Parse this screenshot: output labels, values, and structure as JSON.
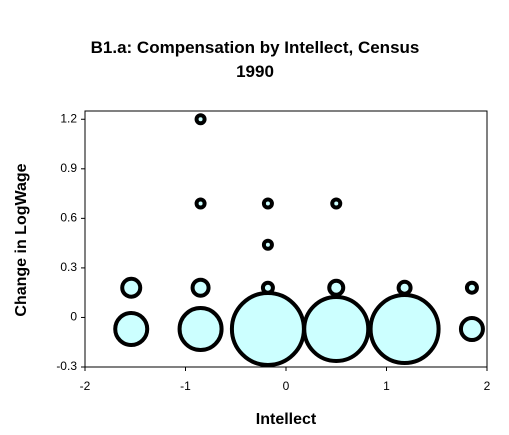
{
  "chart_data": {
    "type": "bubble",
    "title": "B1.a: Compensation by Intellect, Census 1990",
    "xlabel": "Intellect",
    "ylabel": "Change in LogWage",
    "series": [
      {
        "color": "#ccffff",
        "x": [
          -1.54,
          -0.85,
          -0.18,
          0.5,
          1.18,
          1.85,
          -1.54,
          -0.85,
          -0.18,
          0.5,
          1.18,
          1.85,
          -0.85,
          -0.85,
          -0.18,
          0.5,
          -0.18
        ],
        "values": [
          -0.07,
          -0.07,
          -0.07,
          -0.07,
          -0.07,
          -0.07,
          0.18,
          0.18,
          0.18,
          0.18,
          0.18,
          0.18,
          1.2,
          0.69,
          0.69,
          0.69,
          0.44
        ],
        "sizes": [
          256,
          441,
          1296,
          1024,
          1156,
          121,
          81,
          64,
          25,
          49,
          36,
          25,
          16,
          16,
          16,
          16,
          16
        ]
      }
    ],
    "xlim": [
      -2,
      2
    ],
    "xticks": [
      -2,
      -1,
      0,
      1,
      2
    ],
    "ylim": [
      -0.3,
      1.25
    ],
    "yticks": [
      -0.3,
      0,
      0.3,
      0.6,
      0.9,
      1.2
    ]
  }
}
